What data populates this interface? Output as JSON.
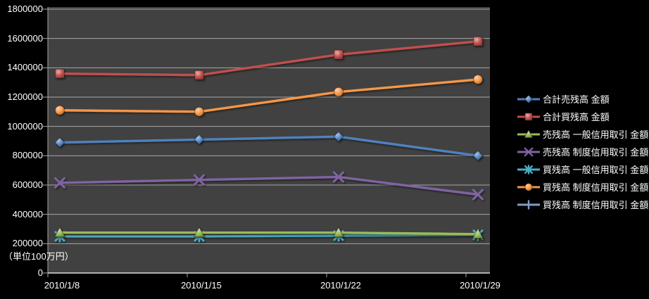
{
  "chart_data": {
    "type": "line",
    "title": "",
    "unit_label": "（単位100万円）",
    "background": "#000000",
    "plot_background": "#414141",
    "gridline_color": "#A6A6A6",
    "axis_line_color": "#D6D6D6",
    "text_color": "#FFFFFF",
    "grid": true,
    "legend_position": "right",
    "x_categories": [
      "2010/1/8",
      "2010/1/15",
      "2010/1/22",
      "2010/1/29"
    ],
    "y_axis": {
      "min": 0,
      "max": 1800000,
      "step": 200000,
      "tick_labels": [
        "1800000",
        "1600000",
        "1400000",
        "1200000",
        "1000000",
        "800000",
        "600000",
        "400000",
        "200000",
        "0"
      ]
    },
    "series": [
      {
        "name": "合計売残高 金額",
        "color": "#4F81BD",
        "marker": "diamond",
        "values": [
          890000,
          910000,
          930000,
          800000
        ]
      },
      {
        "name": "合計買残高 金額",
        "color": "#C0504D",
        "marker": "square",
        "values": [
          1360000,
          1350000,
          1490000,
          1580000
        ]
      },
      {
        "name": "売残高 一般信用取引 金額",
        "color": "#9BBB59",
        "marker": "triangle",
        "values": [
          275000,
          275000,
          275000,
          265000
        ]
      },
      {
        "name": "売残高 制度信用取引 金額",
        "color": "#8064A2",
        "marker": "x",
        "values": [
          615000,
          635000,
          655000,
          535000
        ]
      },
      {
        "name": "買残高 一般信用取引 金額",
        "color": "#4BACC6",
        "marker": "asterisk",
        "values": [
          250000,
          250000,
          255000,
          260000
        ]
      },
      {
        "name": "買残高 制度信用取引 金額",
        "color": "#F79646",
        "marker": "circle",
        "values": [
          1110000,
          1100000,
          1235000,
          1320000
        ]
      },
      {
        "name": "買残高 制度信用取引 金額",
        "color": "#7F9DC9",
        "marker": "plus",
        "values": null
      }
    ]
  }
}
